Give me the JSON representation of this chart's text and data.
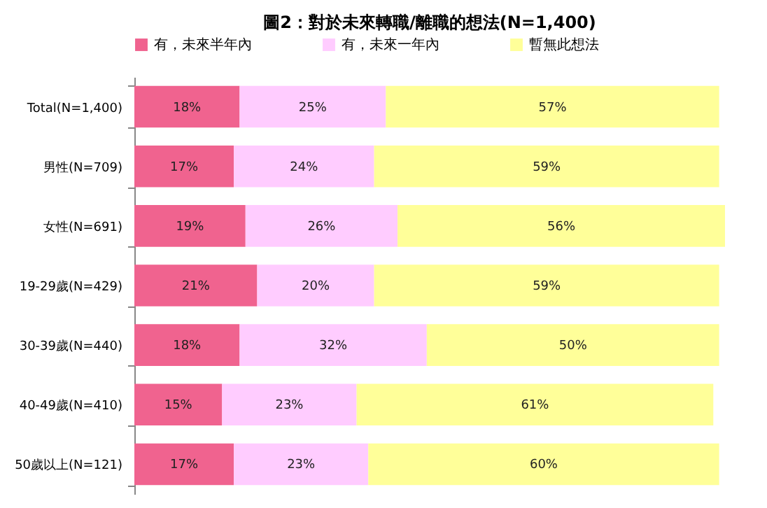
{
  "chart_data": {
    "type": "bar",
    "orientation": "horizontal",
    "stacked": true,
    "title": "圖2：對於未來轉職/離職的想法(N=1,400)",
    "legend": "top",
    "categories": [
      "Total(N=1,400)",
      "男性(N=709)",
      "女性(N=691)",
      "19-29歲(N=429)",
      "30-39歲(N=440)",
      "40-49歲(N=410)",
      "50歲以上(N=121)"
    ],
    "series": [
      {
        "name": "有，未來半年內",
        "color": "#f0638f",
        "values": [
          18,
          17,
          19,
          21,
          18,
          15,
          17
        ],
        "value_labels": [
          "18%",
          "17%",
          "19%",
          "21%",
          "18%",
          "15%",
          "17%"
        ]
      },
      {
        "name": "有，未來一年內",
        "color": "#ffccff",
        "values": [
          25,
          24,
          26,
          20,
          32,
          23,
          23
        ],
        "value_labels": [
          "25%",
          "24%",
          "26%",
          "20%",
          "32%",
          "23%",
          "23%"
        ]
      },
      {
        "name": "暫無此想法",
        "color": "#ffff99",
        "values": [
          57,
          59,
          56,
          59,
          50,
          61,
          60
        ],
        "value_labels": [
          "57%",
          "59%",
          "56%",
          "59%",
          "50%",
          "61%",
          "60%"
        ]
      }
    ]
  }
}
